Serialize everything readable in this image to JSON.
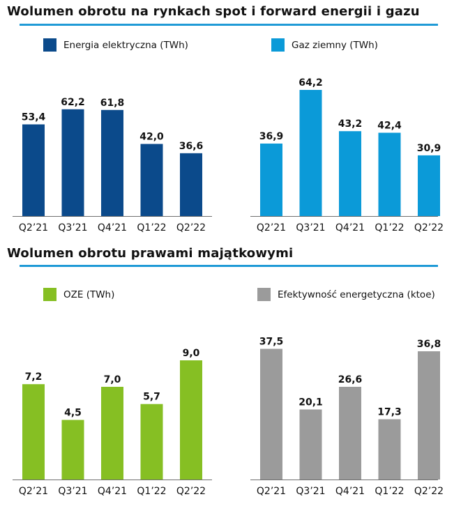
{
  "sections": [
    {
      "title": "Wolumen obrotu na rynkach spot i forward energii i gazu"
    },
    {
      "title": "Wolumen obrotu prawami majątkowymi"
    }
  ],
  "chart_data": [
    {
      "type": "bar",
      "legend": "Energia elektryczna (TWh)",
      "color": "#0b4a8b",
      "categories": [
        "Q2’21",
        "Q3’21",
        "Q4’21",
        "Q1’22",
        "Q2’22"
      ],
      "values": [
        53.4,
        62.2,
        61.8,
        42.0,
        36.6
      ],
      "value_labels": [
        "53,4",
        "62,2",
        "61,8",
        "42,0",
        "36,6"
      ]
    },
    {
      "type": "bar",
      "legend": "Gaz ziemny (TWh)",
      "color": "#0b9ad8",
      "categories": [
        "Q2’21",
        "Q3’21",
        "Q4’21",
        "Q1’22",
        "Q2’22"
      ],
      "values": [
        36.9,
        64.2,
        43.2,
        42.4,
        30.9
      ],
      "value_labels": [
        "36,9",
        "64,2",
        "43,2",
        "42,4",
        "30,9"
      ]
    },
    {
      "type": "bar",
      "legend": "OZE (TWh)",
      "color": "#86bf23",
      "categories": [
        "Q2’21",
        "Q3’21",
        "Q4’21",
        "Q1’22",
        "Q2’22"
      ],
      "values": [
        7.2,
        4.5,
        7.0,
        5.7,
        9.0
      ],
      "value_labels": [
        "7,2",
        "4,5",
        "7,0",
        "5,7",
        "9,0"
      ]
    },
    {
      "type": "bar",
      "legend": "Efektywność energetyczna (ktoe)",
      "color": "#9b9b9b",
      "categories": [
        "Q2’21",
        "Q3’21",
        "Q4’21",
        "Q1’22",
        "Q2’22"
      ],
      "values": [
        37.5,
        20.1,
        26.6,
        17.3,
        36.8
      ],
      "value_labels": [
        "37,5",
        "20,1",
        "26,6",
        "17,3",
        "36,8"
      ]
    }
  ]
}
